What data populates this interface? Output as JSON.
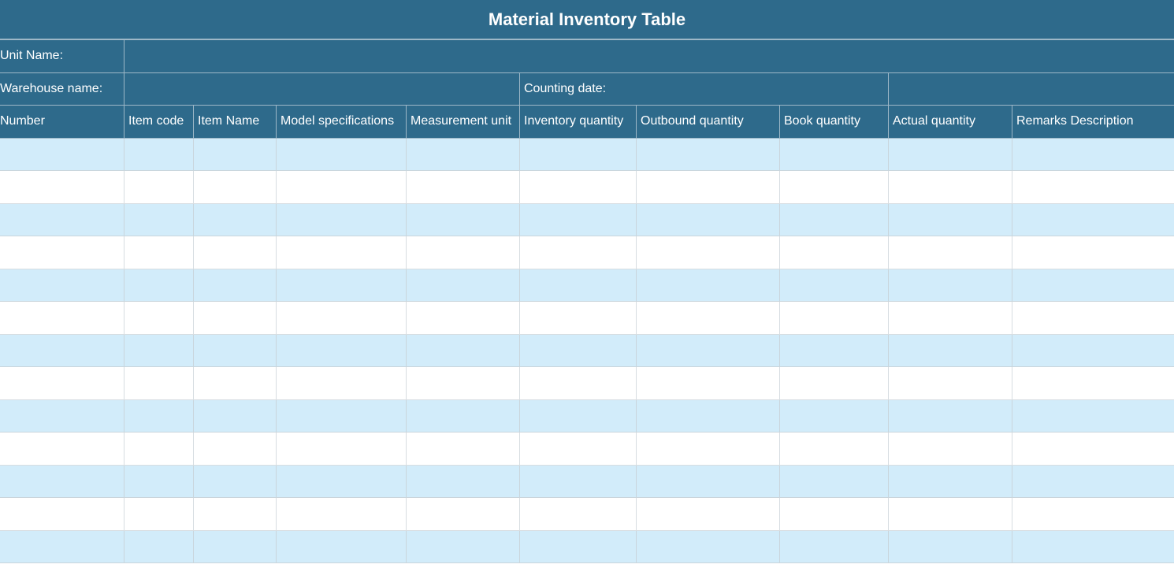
{
  "title": "Material Inventory Table",
  "info": {
    "unit_name_label": "Unit Name:",
    "unit_name_value": "",
    "warehouse_label": "Warehouse name:",
    "warehouse_value": "",
    "counting_date_label": "Counting date:",
    "counting_date_value": ""
  },
  "columns": [
    "Number",
    "Item code",
    "Item Name",
    "Model specifications",
    "Measurement unit",
    "Inventory quantity",
    "Outbound quantity",
    "Book quantity",
    "Actual quantity",
    "Remarks Description"
  ],
  "rows": [
    [
      "",
      "",
      "",
      "",
      "",
      "",
      "",
      "",
      "",
      ""
    ],
    [
      "",
      "",
      "",
      "",
      "",
      "",
      "",
      "",
      "",
      ""
    ],
    [
      "",
      "",
      "",
      "",
      "",
      "",
      "",
      "",
      "",
      ""
    ],
    [
      "",
      "",
      "",
      "",
      "",
      "",
      "",
      "",
      "",
      ""
    ],
    [
      "",
      "",
      "",
      "",
      "",
      "",
      "",
      "",
      "",
      ""
    ],
    [
      "",
      "",
      "",
      "",
      "",
      "",
      "",
      "",
      "",
      ""
    ],
    [
      "",
      "",
      "",
      "",
      "",
      "",
      "",
      "",
      "",
      ""
    ],
    [
      "",
      "",
      "",
      "",
      "",
      "",
      "",
      "",
      "",
      ""
    ],
    [
      "",
      "",
      "",
      "",
      "",
      "",
      "",
      "",
      "",
      ""
    ],
    [
      "",
      "",
      "",
      "",
      "",
      "",
      "",
      "",
      "",
      ""
    ],
    [
      "",
      "",
      "",
      "",
      "",
      "",
      "",
      "",
      "",
      ""
    ],
    [
      "",
      "",
      "",
      "",
      "",
      "",
      "",
      "",
      "",
      ""
    ],
    [
      "",
      "",
      "",
      "",
      "",
      "",
      "",
      "",
      "",
      ""
    ]
  ],
  "colors": {
    "header_bg": "#2e6a8b",
    "header_text": "#ffffff",
    "row_alt_bg": "#d2ecfa",
    "row_bg": "#ffffff"
  }
}
